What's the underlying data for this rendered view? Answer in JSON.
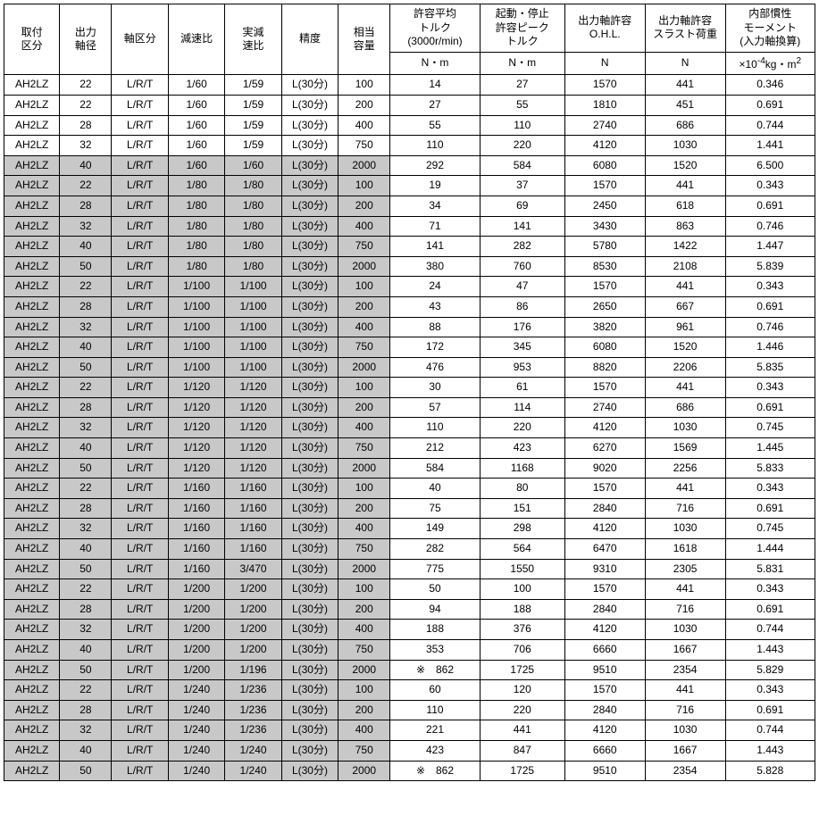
{
  "headers": {
    "h0a": "取付",
    "h0b": "区分",
    "h1a": "出力",
    "h1b": "軸径",
    "h2": "軸区分",
    "h3": "減速比",
    "h4a": "実減",
    "h4b": "速比",
    "h5": "精度",
    "h6a": "相当",
    "h6b": "容量",
    "h7a": "許容平均",
    "h7b": "トルク",
    "h7c": "(3000r/min)",
    "h8a": "起動・停止",
    "h8b": "許容ピーク",
    "h8c": "トルク",
    "h9a": "出力軸許容",
    "h9b": "O.H.L.",
    "h10a": "出力軸許容",
    "h10b": "スラスト荷重",
    "h11a": "内部慣性",
    "h11b": "モーメント",
    "h11c": "(入力軸換算)"
  },
  "units": {
    "u7": "N・m",
    "u8": "N・m",
    "u9": "N",
    "u10": "N",
    "u11_pre": "×10",
    "u11_sup": "-4",
    "u11_post": "kg・m",
    "u11_sup2": "2"
  },
  "rows": [
    {
      "c": [
        "AH2LZ",
        "22",
        "L/R/T",
        "1/60",
        "1/59",
        "L(30分)",
        "100",
        "14",
        "27",
        "1570",
        "441",
        "0.346"
      ],
      "sh": false
    },
    {
      "c": [
        "AH2LZ",
        "22",
        "L/R/T",
        "1/60",
        "1/59",
        "L(30分)",
        "200",
        "27",
        "55",
        "1810",
        "451",
        "0.691"
      ],
      "sh": false
    },
    {
      "c": [
        "AH2LZ",
        "28",
        "L/R/T",
        "1/60",
        "1/59",
        "L(30分)",
        "400",
        "55",
        "110",
        "2740",
        "686",
        "0.744"
      ],
      "sh": false
    },
    {
      "c": [
        "AH2LZ",
        "32",
        "L/R/T",
        "1/60",
        "1/59",
        "L(30分)",
        "750",
        "110",
        "220",
        "4120",
        "1030",
        "1.441"
      ],
      "sh": false
    },
    {
      "c": [
        "AH2LZ",
        "40",
        "L/R/T",
        "1/60",
        "1/60",
        "L(30分)",
        "2000",
        "292",
        "584",
        "6080",
        "1520",
        "6.500"
      ],
      "sh": true
    },
    {
      "c": [
        "AH2LZ",
        "22",
        "L/R/T",
        "1/80",
        "1/80",
        "L(30分)",
        "100",
        "19",
        "37",
        "1570",
        "441",
        "0.343"
      ],
      "sh": true
    },
    {
      "c": [
        "AH2LZ",
        "28",
        "L/R/T",
        "1/80",
        "1/80",
        "L(30分)",
        "200",
        "34",
        "69",
        "2450",
        "618",
        "0.691"
      ],
      "sh": true
    },
    {
      "c": [
        "AH2LZ",
        "32",
        "L/R/T",
        "1/80",
        "1/80",
        "L(30分)",
        "400",
        "71",
        "141",
        "3430",
        "863",
        "0.746"
      ],
      "sh": true
    },
    {
      "c": [
        "AH2LZ",
        "40",
        "L/R/T",
        "1/80",
        "1/80",
        "L(30分)",
        "750",
        "141",
        "282",
        "5780",
        "1422",
        "1.447"
      ],
      "sh": true
    },
    {
      "c": [
        "AH2LZ",
        "50",
        "L/R/T",
        "1/80",
        "1/80",
        "L(30分)",
        "2000",
        "380",
        "760",
        "8530",
        "2108",
        "5.839"
      ],
      "sh": true
    },
    {
      "c": [
        "AH2LZ",
        "22",
        "L/R/T",
        "1/100",
        "1/100",
        "L(30分)",
        "100",
        "24",
        "47",
        "1570",
        "441",
        "0.343"
      ],
      "sh": true
    },
    {
      "c": [
        "AH2LZ",
        "28",
        "L/R/T",
        "1/100",
        "1/100",
        "L(30分)",
        "200",
        "43",
        "86",
        "2650",
        "667",
        "0.691"
      ],
      "sh": true
    },
    {
      "c": [
        "AH2LZ",
        "32",
        "L/R/T",
        "1/100",
        "1/100",
        "L(30分)",
        "400",
        "88",
        "176",
        "3820",
        "961",
        "0.746"
      ],
      "sh": true
    },
    {
      "c": [
        "AH2LZ",
        "40",
        "L/R/T",
        "1/100",
        "1/100",
        "L(30分)",
        "750",
        "172",
        "345",
        "6080",
        "1520",
        "1.446"
      ],
      "sh": true
    },
    {
      "c": [
        "AH2LZ",
        "50",
        "L/R/T",
        "1/100",
        "1/100",
        "L(30分)",
        "2000",
        "476",
        "953",
        "8820",
        "2206",
        "5.835"
      ],
      "sh": true
    },
    {
      "c": [
        "AH2LZ",
        "22",
        "L/R/T",
        "1/120",
        "1/120",
        "L(30分)",
        "100",
        "30",
        "61",
        "1570",
        "441",
        "0.343"
      ],
      "sh": true
    },
    {
      "c": [
        "AH2LZ",
        "28",
        "L/R/T",
        "1/120",
        "1/120",
        "L(30分)",
        "200",
        "57",
        "114",
        "2740",
        "686",
        "0.691"
      ],
      "sh": true
    },
    {
      "c": [
        "AH2LZ",
        "32",
        "L/R/T",
        "1/120",
        "1/120",
        "L(30分)",
        "400",
        "110",
        "220",
        "4120",
        "1030",
        "0.745"
      ],
      "sh": true
    },
    {
      "c": [
        "AH2LZ",
        "40",
        "L/R/T",
        "1/120",
        "1/120",
        "L(30分)",
        "750",
        "212",
        "423",
        "6270",
        "1569",
        "1.445"
      ],
      "sh": true
    },
    {
      "c": [
        "AH2LZ",
        "50",
        "L/R/T",
        "1/120",
        "1/120",
        "L(30分)",
        "2000",
        "584",
        "1168",
        "9020",
        "2256",
        "5.833"
      ],
      "sh": true
    },
    {
      "c": [
        "AH2LZ",
        "22",
        "L/R/T",
        "1/160",
        "1/160",
        "L(30分)",
        "100",
        "40",
        "80",
        "1570",
        "441",
        "0.343"
      ],
      "sh": true
    },
    {
      "c": [
        "AH2LZ",
        "28",
        "L/R/T",
        "1/160",
        "1/160",
        "L(30分)",
        "200",
        "75",
        "151",
        "2840",
        "716",
        "0.691"
      ],
      "sh": true
    },
    {
      "c": [
        "AH2LZ",
        "32",
        "L/R/T",
        "1/160",
        "1/160",
        "L(30分)",
        "400",
        "149",
        "298",
        "4120",
        "1030",
        "0.745"
      ],
      "sh": true
    },
    {
      "c": [
        "AH2LZ",
        "40",
        "L/R/T",
        "1/160",
        "1/160",
        "L(30分)",
        "750",
        "282",
        "564",
        "6470",
        "1618",
        "1.444"
      ],
      "sh": true
    },
    {
      "c": [
        "AH2LZ",
        "50",
        "L/R/T",
        "1/160",
        "3/470",
        "L(30分)",
        "2000",
        "775",
        "1550",
        "9310",
        "2305",
        "5.831"
      ],
      "sh": true
    },
    {
      "c": [
        "AH2LZ",
        "22",
        "L/R/T",
        "1/200",
        "1/200",
        "L(30分)",
        "100",
        "50",
        "100",
        "1570",
        "441",
        "0.343"
      ],
      "sh": true
    },
    {
      "c": [
        "AH2LZ",
        "28",
        "L/R/T",
        "1/200",
        "1/200",
        "L(30分)",
        "200",
        "94",
        "188",
        "2840",
        "716",
        "0.691"
      ],
      "sh": true
    },
    {
      "c": [
        "AH2LZ",
        "32",
        "L/R/T",
        "1/200",
        "1/200",
        "L(30分)",
        "400",
        "188",
        "376",
        "4120",
        "1030",
        "0.744"
      ],
      "sh": true
    },
    {
      "c": [
        "AH2LZ",
        "40",
        "L/R/T",
        "1/200",
        "1/200",
        "L(30分)",
        "750",
        "353",
        "706",
        "6660",
        "1667",
        "1.443"
      ],
      "sh": true
    },
    {
      "c": [
        "AH2LZ",
        "50",
        "L/R/T",
        "1/200",
        "1/196",
        "L(30分)",
        "2000",
        "※　862",
        "1725",
        "9510",
        "2354",
        "5.829"
      ],
      "sh": true
    },
    {
      "c": [
        "AH2LZ",
        "22",
        "L/R/T",
        "1/240",
        "1/236",
        "L(30分)",
        "100",
        "60",
        "120",
        "1570",
        "441",
        "0.343"
      ],
      "sh": true
    },
    {
      "c": [
        "AH2LZ",
        "28",
        "L/R/T",
        "1/240",
        "1/236",
        "L(30分)",
        "200",
        "110",
        "220",
        "2840",
        "716",
        "0.691"
      ],
      "sh": true
    },
    {
      "c": [
        "AH2LZ",
        "32",
        "L/R/T",
        "1/240",
        "1/236",
        "L(30分)",
        "400",
        "221",
        "441",
        "4120",
        "1030",
        "0.744"
      ],
      "sh": true
    },
    {
      "c": [
        "AH2LZ",
        "40",
        "L/R/T",
        "1/240",
        "1/240",
        "L(30分)",
        "750",
        "423",
        "847",
        "6660",
        "1667",
        "1.443"
      ],
      "sh": true
    },
    {
      "c": [
        "AH2LZ",
        "50",
        "L/R/T",
        "1/240",
        "1/240",
        "L(30分)",
        "2000",
        "※　862",
        "1725",
        "9510",
        "2354",
        "5.828"
      ],
      "sh": true
    }
  ]
}
